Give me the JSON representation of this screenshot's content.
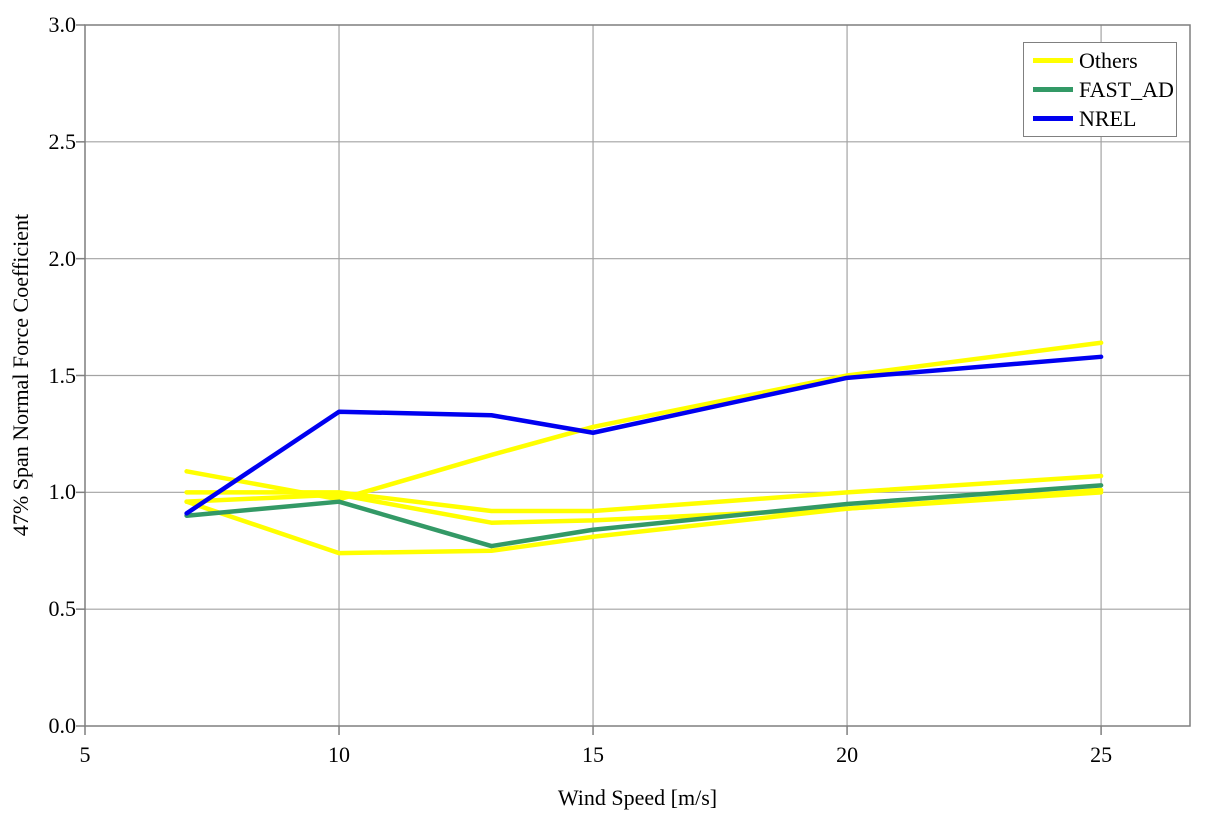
{
  "chart_data": {
    "type": "line",
    "title": "",
    "xlabel": "Wind Speed [m/s]",
    "ylabel": "47% Span Normal Force Coefficient",
    "xlim": [
      5,
      26.75
    ],
    "ylim": [
      0.0,
      3.0
    ],
    "x_ticks": [
      "5",
      "10",
      "15",
      "20",
      "25"
    ],
    "x_tick_values": [
      5,
      10,
      15,
      20,
      25
    ],
    "y_ticks": [
      "0.0",
      "0.5",
      "1.0",
      "1.5",
      "2.0",
      "2.5",
      "3.0"
    ],
    "y_tick_values": [
      0.0,
      0.5,
      1.0,
      1.5,
      2.0,
      2.5,
      3.0
    ],
    "grid": true,
    "legend_position": "top-right",
    "x": [
      7,
      10,
      13,
      15,
      20,
      25
    ],
    "series": [
      {
        "name": "Others",
        "color": "#FFFF00",
        "values": [
          1.09,
          0.97,
          1.16,
          1.28,
          1.5,
          1.64
        ]
      },
      {
        "name": "Others",
        "color": "#FFFF00",
        "values": [
          0.96,
          0.74,
          0.75,
          0.81,
          0.93,
          1.0
        ]
      },
      {
        "name": "Others",
        "color": "#FFFF00",
        "values": [
          0.96,
          0.99,
          0.87,
          0.88,
          0.93,
          1.01
        ]
      },
      {
        "name": "Others",
        "color": "#FFFF00",
        "values": [
          1.0,
          1.0,
          0.92,
          0.92,
          1.0,
          1.07
        ]
      },
      {
        "name": "FAST_AD",
        "color": "#339966",
        "values": [
          0.9,
          0.96,
          0.77,
          0.84,
          0.95,
          1.03
        ]
      },
      {
        "name": "NREL",
        "color": "#0000F0",
        "values": [
          0.91,
          1.345,
          1.33,
          1.255,
          1.49,
          1.58
        ]
      }
    ]
  },
  "legend": {
    "items": [
      {
        "label": "Others",
        "color": "#FFFF00"
      },
      {
        "label": "FAST_AD",
        "color": "#339966"
      },
      {
        "label": "NREL",
        "color": "#0000F0"
      }
    ]
  },
  "colors": {
    "background": "#ffffff",
    "grid": "#a3a3a3",
    "axis": "#7f7f7f",
    "tick": "#7f7f7f",
    "text": "#000000"
  }
}
